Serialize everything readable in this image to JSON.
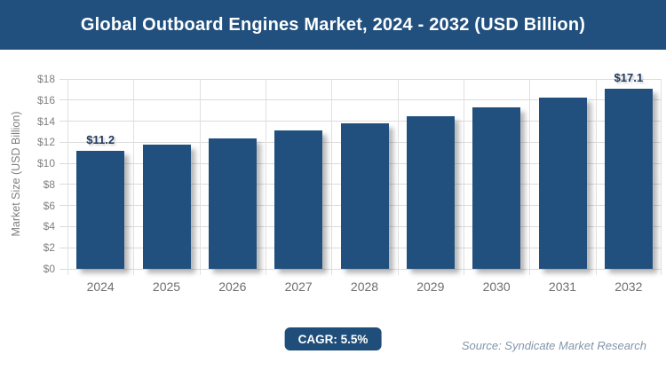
{
  "header": {
    "title": "Global Outboard Engines Market, 2024 - 2032 (USD Billion)"
  },
  "footer": {
    "cagr_label": "CAGR: 5.5%",
    "source": "Source: Syndicate Market Research"
  },
  "colors": {
    "primary_blue": "#21507E",
    "badge_blue": "#1F4E7B",
    "gridline": "#DBDBDB",
    "axis_text": "#7F7F7F",
    "value_label": "#203A60",
    "source_text": "#8296AA"
  },
  "chart_data": {
    "type": "bar",
    "title": "Global Outboard Engines Market, 2024 - 2032 (USD Billion)",
    "xlabel": "",
    "ylabel": "Market Size (USD Billion)",
    "ylim": [
      0,
      18
    ],
    "ytick_step": 2,
    "ytick_labels": [
      "$0",
      "$2",
      "$4",
      "$6",
      "$8",
      "$10",
      "$12",
      "$14",
      "$16",
      "$18"
    ],
    "grid": "horizontal and vertical, light gray",
    "legend": "none",
    "categories": [
      "2024",
      "2025",
      "2026",
      "2027",
      "2028",
      "2029",
      "2030",
      "2031",
      "2032"
    ],
    "values": [
      11.2,
      11.8,
      12.4,
      13.1,
      13.8,
      14.5,
      15.3,
      16.2,
      17.1
    ],
    "point_labels": [
      "$11.2",
      null,
      null,
      null,
      null,
      null,
      null,
      null,
      "$17.1"
    ],
    "cagr": "5.5%"
  }
}
